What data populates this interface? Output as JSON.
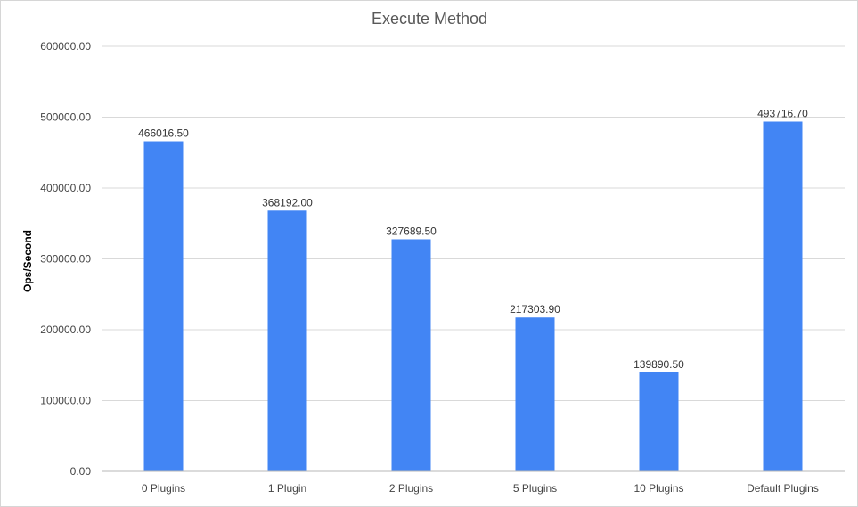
{
  "chart_data": {
    "type": "bar",
    "title": "Execute Method",
    "xlabel": "",
    "ylabel": "Ops/Second",
    "ylim": [
      0,
      600000
    ],
    "yticks": [
      0,
      100000,
      200000,
      300000,
      400000,
      500000,
      600000
    ],
    "ytick_labels": [
      "0.00",
      "100000.00",
      "200000.00",
      "300000.00",
      "400000.00",
      "500000.00",
      "600000.00"
    ],
    "grid": true,
    "legend": "none",
    "categories": [
      "0 Plugins",
      "1 Plugin",
      "2 Plugins",
      "5 Plugins",
      "10 Plugins",
      "Default Plugins"
    ],
    "values": [
      466016.5,
      368192.0,
      327689.5,
      217303.9,
      139890.5,
      493716.7
    ],
    "value_labels": [
      "466016.50",
      "368192.00",
      "327689.50",
      "217303.90",
      "139890.50",
      "493716.70"
    ],
    "bar_color": "#4285f4"
  }
}
